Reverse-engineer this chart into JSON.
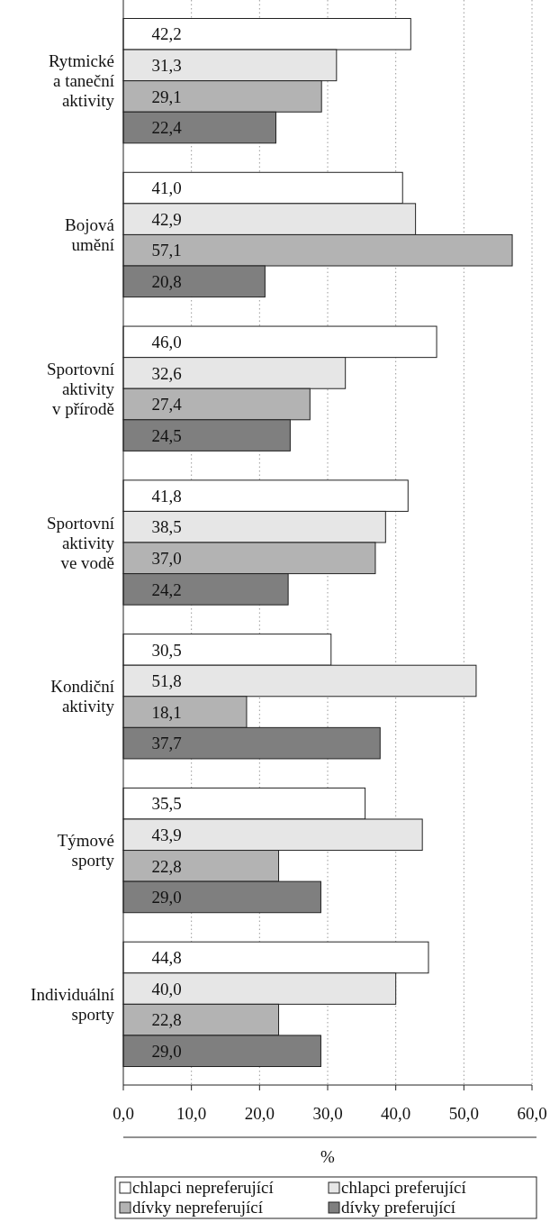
{
  "chart_data": {
    "type": "bar",
    "orientation": "horizontal",
    "xlabel": "%",
    "categories": [
      "Rytmické a taneční aktivity",
      "Bojová umění",
      "Sportovní aktivity v přírodě",
      "Sportovní aktivity ve vodě",
      "Kondiční aktivity",
      "Týmové sporty",
      "Individuální sporty"
    ],
    "series": [
      {
        "name": "chlapci nepreferující",
        "color": "#ffffff",
        "values": [
          42.2,
          41.0,
          46.0,
          41.8,
          30.5,
          35.5,
          44.8
        ],
        "value_labels": [
          "42,2",
          "41,0",
          "46,0",
          "41,8",
          "30,5",
          "35,5",
          "44,8"
        ]
      },
      {
        "name": "chlapci preferující",
        "color": "#e6e6e6",
        "values": [
          31.3,
          42.9,
          32.6,
          38.5,
          51.8,
          43.9,
          40.0
        ],
        "value_labels": [
          "31,3",
          "42,9",
          "32,6",
          "38,5",
          "51,8",
          "43,9",
          "40,0"
        ]
      },
      {
        "name": "dívky nepreferující",
        "color": "#b3b3b3",
        "values": [
          29.1,
          57.1,
          27.4,
          37.0,
          18.1,
          22.8,
          22.8
        ],
        "value_labels": [
          "29,1",
          "57,1",
          "27,4",
          "37,0",
          "18,1",
          "22,8",
          "22,8"
        ]
      },
      {
        "name": "dívky preferující",
        "color": "#7f7f7f",
        "values": [
          22.4,
          20.8,
          24.5,
          24.2,
          37.7,
          29.0,
          29.0
        ],
        "value_labels": [
          "22,4",
          "20,8",
          "24,5",
          "24,2",
          "37,7",
          "29,0",
          "29,0"
        ]
      }
    ],
    "xlim": [
      0,
      60
    ],
    "xticks": [
      {
        "value": 0,
        "label": "0,0"
      },
      {
        "value": 10,
        "label": "10,0"
      },
      {
        "value": 20,
        "label": "20,0"
      },
      {
        "value": 30,
        "label": "30,0"
      },
      {
        "value": 40,
        "label": "40,0"
      },
      {
        "value": 50,
        "label": "50,0"
      },
      {
        "value": 60,
        "label": "60,0"
      }
    ],
    "grid": "x",
    "legend": "bottom"
  }
}
